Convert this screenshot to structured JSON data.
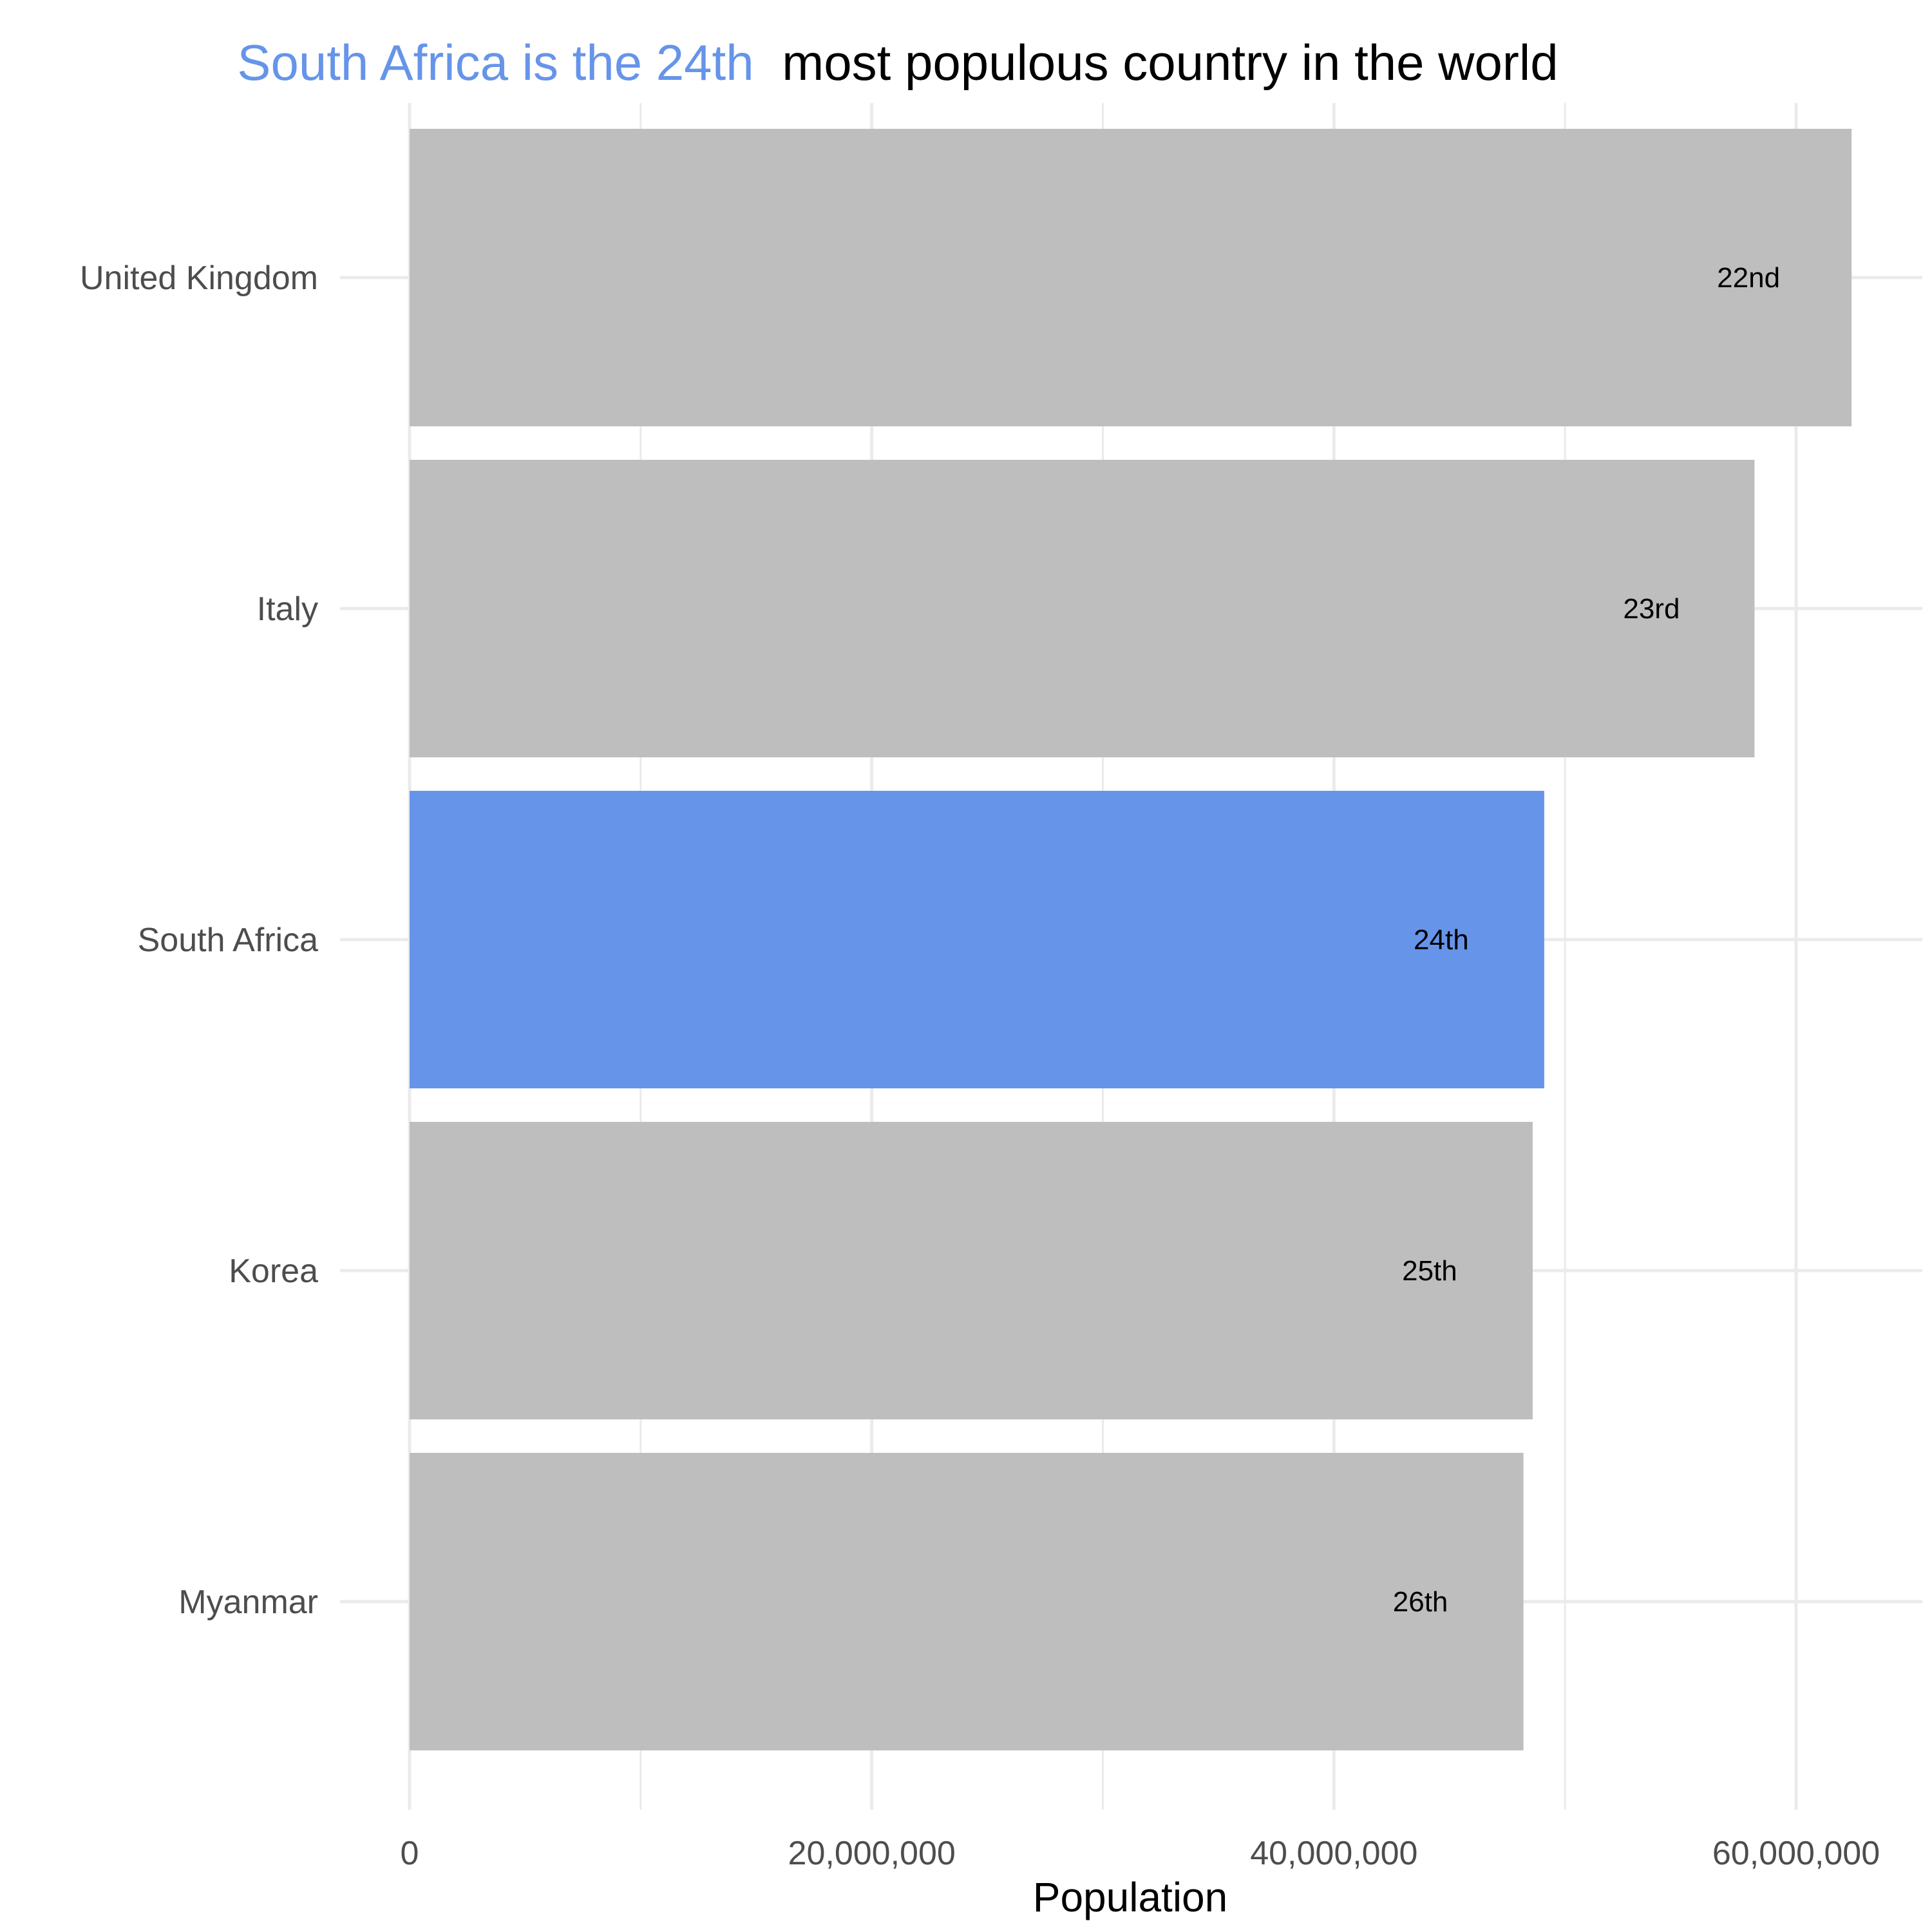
{
  "chart_data": {
    "type": "bar",
    "orientation": "horizontal",
    "title": {
      "highlight": "South Africa is the 24th",
      "rest": "most populous country in the world"
    },
    "xlabel": "Population",
    "ylabel": "",
    "xlim": [
      0,
      65000000
    ],
    "x_ticks": [
      0,
      20000000,
      40000000,
      60000000
    ],
    "x_tick_labels": [
      "0",
      "20,000,000",
      "40,000,000",
      "60,000,000"
    ],
    "categories": [
      "United Kingdom",
      "Italy",
      "South Africa",
      "Korea",
      "Myanmar"
    ],
    "values": [
      62400000,
      58200000,
      49100000,
      48600000,
      48200000
    ],
    "data_labels": [
      "22nd",
      "23rd",
      "24th",
      "25th",
      "26th"
    ],
    "highlighted": "South Africa",
    "colors": {
      "highlight": "#6694e9",
      "default": "#bebebe",
      "grid": "#ebebeb",
      "title_highlight": "#6694e9",
      "title_rest": "#000000",
      "tick_text": "#4d4d4d"
    },
    "grid": true,
    "legend": "none"
  }
}
